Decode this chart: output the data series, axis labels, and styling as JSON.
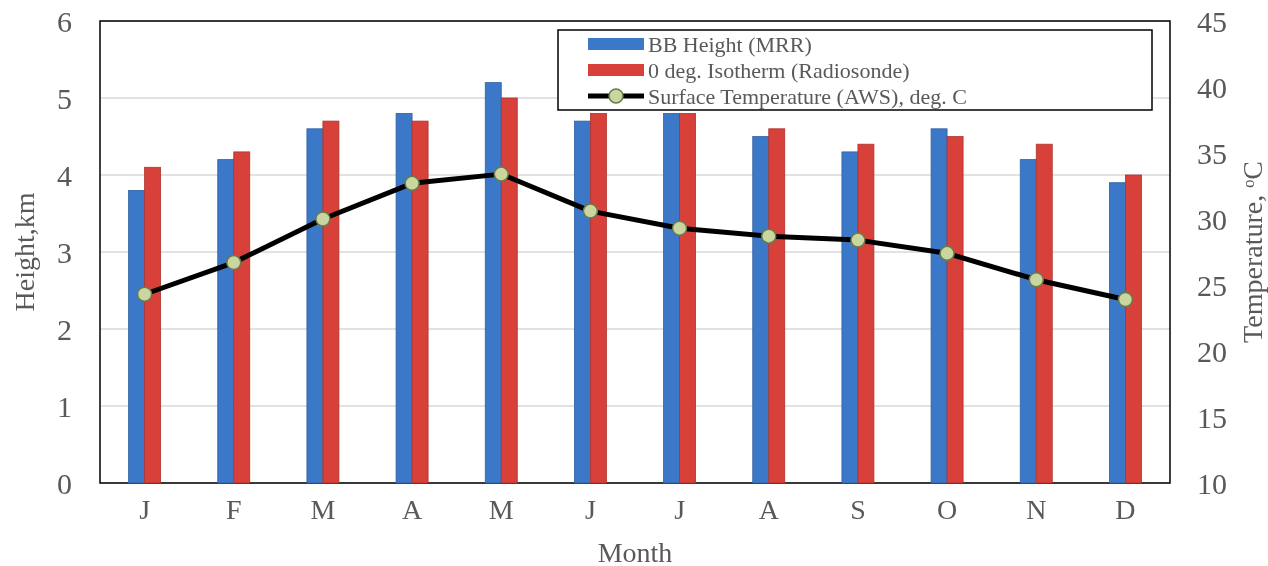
{
  "chart_data": {
    "type": "bar",
    "xlabel": "Month",
    "ylabel": "Height,km",
    "y2label": "Temperature, ᵒC",
    "categories": [
      "J",
      "F",
      "M",
      "A",
      "M",
      "J",
      "J",
      "A",
      "S",
      "O",
      "N",
      "D"
    ],
    "series": [
      {
        "name": "BB Height (MRR)",
        "color": "#3b78c8",
        "values": [
          3.8,
          4.2,
          4.6,
          4.8,
          5.2,
          4.7,
          4.8,
          4.5,
          4.3,
          4.6,
          4.2,
          3.9
        ]
      },
      {
        "name": "0 deg. Isotherm (Radiosonde)",
        "color": "#d8403a",
        "values": [
          4.1,
          4.3,
          4.7,
          4.7,
          5.0,
          4.8,
          4.8,
          4.6,
          4.4,
          4.5,
          4.4,
          4.0
        ]
      },
      {
        "name": "Surface Temperature (AWS), deg. C",
        "type": "line",
        "axis": "y2",
        "color": "#000000",
        "values": [
          24.3,
          26.7,
          30.0,
          32.7,
          33.4,
          30.6,
          29.3,
          28.7,
          28.4,
          27.4,
          25.4,
          23.9
        ]
      }
    ],
    "ylim": [
      0,
      6
    ],
    "yticks": [
      0,
      1,
      2,
      3,
      4,
      5,
      6
    ],
    "y2lim": [
      10,
      45
    ],
    "y2ticks": [
      10,
      15,
      20,
      25,
      30,
      35,
      40,
      45
    ],
    "grid": "y",
    "legend": "top right",
    "marker": "circle",
    "line_style": "solid"
  }
}
